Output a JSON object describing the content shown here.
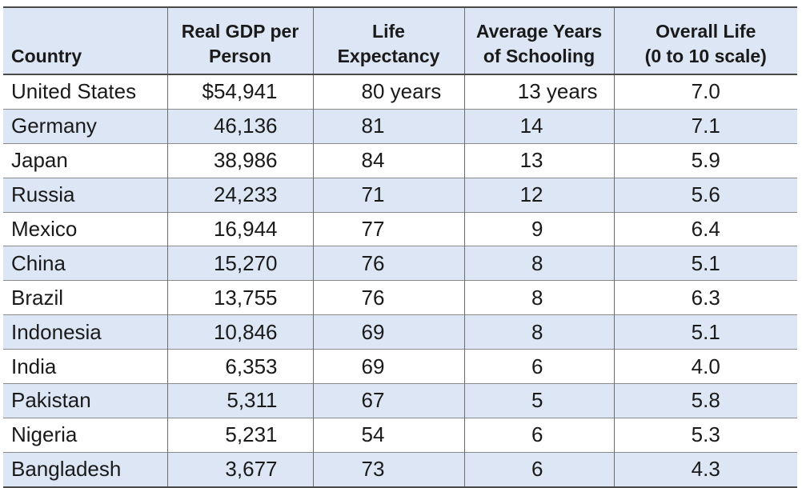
{
  "table": {
    "headers": {
      "country": "Country",
      "gdp_line1": "Real GDP per",
      "gdp_line2": "Person",
      "life_line1": "Life",
      "life_line2": "Expectancy",
      "school_line1": "Average Years",
      "school_line2": "of Schooling",
      "overall_line1": "Overall Life",
      "overall_line2": "(0 to 10 scale)"
    },
    "rows": [
      {
        "country": "United States",
        "gdp": "$54,941",
        "life": "80 years",
        "school": "13 years",
        "overall": "7.0"
      },
      {
        "country": "Germany",
        "gdp": "46,136",
        "life": "81",
        "school": "14",
        "overall": "7.1"
      },
      {
        "country": "Japan",
        "gdp": "38,986",
        "life": "84",
        "school": "13",
        "overall": "5.9"
      },
      {
        "country": "Russia",
        "gdp": "24,233",
        "life": "71",
        "school": "12",
        "overall": "5.6"
      },
      {
        "country": "Mexico",
        "gdp": "16,944",
        "life": "77",
        "school": "9",
        "overall": "6.4"
      },
      {
        "country": "China",
        "gdp": "15,270",
        "life": "76",
        "school": "8",
        "overall": "5.1"
      },
      {
        "country": "Brazil",
        "gdp": "13,755",
        "life": "76",
        "school": "8",
        "overall": "6.3"
      },
      {
        "country": "Indonesia",
        "gdp": "10,846",
        "life": "69",
        "school": "8",
        "overall": "5.1"
      },
      {
        "country": "India",
        "gdp": "6,353",
        "life": "69",
        "school": "6",
        "overall": "4.0"
      },
      {
        "country": "Pakistan",
        "gdp": "5,311",
        "life": "67",
        "school": "5",
        "overall": "5.8"
      },
      {
        "country": "Nigeria",
        "gdp": "5,231",
        "life": "54",
        "school": "6",
        "overall": "5.3"
      },
      {
        "country": "Bangladesh",
        "gdp": "3,677",
        "life": "73",
        "school": "6",
        "overall": "4.3"
      }
    ]
  },
  "colors": {
    "stripe": "#dde6f5",
    "rule": "#4a4a4a"
  }
}
